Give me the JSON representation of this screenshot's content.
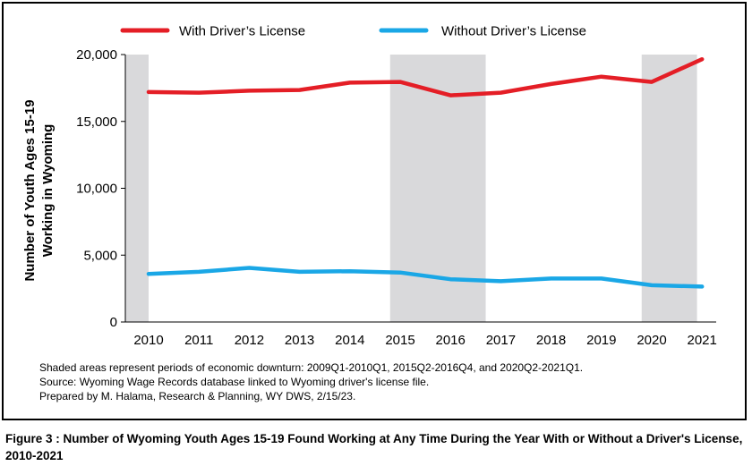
{
  "chart_data": {
    "type": "line",
    "x": [
      2010,
      2011,
      2012,
      2013,
      2014,
      2015,
      2016,
      2017,
      2018,
      2019,
      2020,
      2021
    ],
    "tick_labels": [
      "2010",
      "2011",
      "2012",
      "2013",
      "2014",
      "2015",
      "2016",
      "2017",
      "2018",
      "2019",
      "2020",
      "2021"
    ],
    "series": [
      {
        "name": "With Driver’s License",
        "color": "#e41e26",
        "values": [
          17200,
          17150,
          17300,
          17350,
          17900,
          17950,
          16950,
          17150,
          17800,
          18350,
          17950,
          19650
        ]
      },
      {
        "name": "Without Driver’s License",
        "color": "#1aa7e6",
        "values": [
          3600,
          3750,
          4050,
          3750,
          3800,
          3700,
          3200,
          3050,
          3250,
          3250,
          2750,
          2650
        ]
      }
    ],
    "ylabel_line1": "Number of Youth Ages 15-19",
    "ylabel_line2": "Working in Wyoming",
    "ylim": [
      0,
      20000
    ],
    "yticks": [
      0,
      5000,
      10000,
      15000,
      20000
    ],
    "ytick_labels": [
      "0",
      "5,000",
      "10,000",
      "15,000",
      "20,000"
    ],
    "recessions": [
      {
        "label": "2009Q1-2010Q1",
        "start": 2009.5,
        "end": 2010.0
      },
      {
        "label": "2015Q2-2016Q4",
        "start": 2014.8,
        "end": 2016.7
      },
      {
        "label": "2020Q2-2021Q1",
        "start": 2019.8,
        "end": 2020.9
      }
    ],
    "recession_color": "#d9d9db",
    "legend_position": "top",
    "grid": false
  },
  "notes": {
    "line1": "Shaded areas represent periods of economic downturn: 2009Q1-2010Q1, 2015Q2-2016Q4, and 2020Q2-2021Q1.",
    "line2": "Source: Wyoming Wage Records database linked to Wyoming driver's license file.",
    "line3": "Prepared by M. Halama, Research & Planning, WY DWS, 2/15/23."
  },
  "caption": "Figure 3 : Number of Wyoming Youth Ages 15-19 Found Working at Any Time During the Year With or Without a Driver's License, 2010-2021"
}
